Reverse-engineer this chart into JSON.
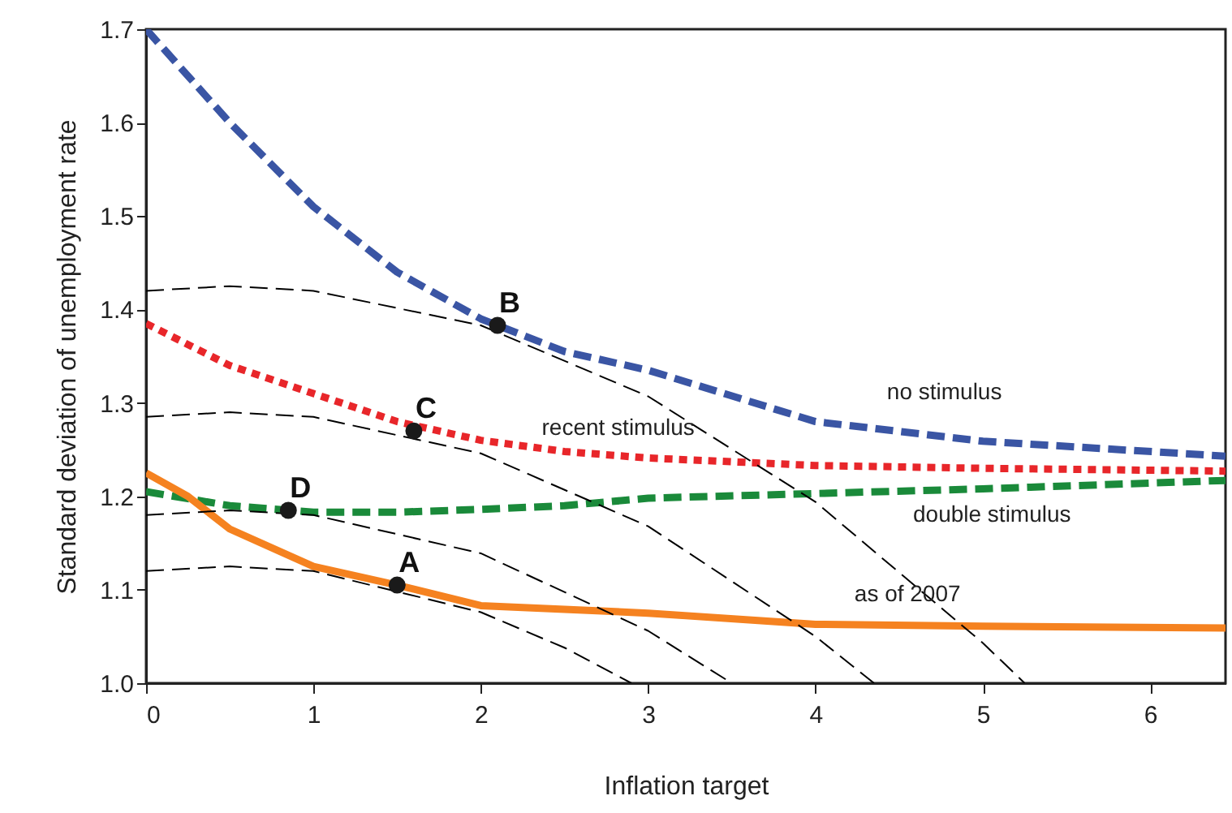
{
  "chart_data": {
    "type": "line",
    "xlabel": "Inflation target",
    "ylabel": "Standard deviation of unemployment rate",
    "xlim": [
      0,
      6.45
    ],
    "xticks": [
      0,
      1,
      2,
      3,
      4,
      5,
      6
    ],
    "ylim": [
      1.0,
      1.7
    ],
    "yticks": [
      {
        "value": 1.0,
        "label": "1.0"
      },
      1.1,
      1.2,
      1.3,
      1.4,
      1.5,
      1.6,
      {
        "value": 1.7,
        "label": "1.7"
      }
    ],
    "grid": false,
    "legend": false,
    "marker": "none",
    "series": [
      {
        "name": "no stimulus",
        "color": "#3a55a4",
        "line_style": "dashed",
        "x": [
          0,
          0.5,
          1,
          1.5,
          2,
          2.5,
          3,
          4,
          5,
          6.45
        ],
        "values": [
          1.7,
          1.6,
          1.51,
          1.44,
          1.39,
          1.355,
          1.335,
          1.28,
          1.259,
          1.243
        ]
      },
      {
        "name": "recent stimulus",
        "color": "#e8262a",
        "line_style": "dotted",
        "x": [
          0,
          0.5,
          1,
          1.5,
          2,
          2.5,
          3,
          4,
          5,
          6.45
        ],
        "values": [
          1.385,
          1.34,
          1.31,
          1.28,
          1.26,
          1.248,
          1.241,
          1.233,
          1.23,
          1.227
        ]
      },
      {
        "name": "double stimulus",
        "color": "#1a8a3a",
        "line_style": "dashed",
        "x": [
          0,
          0.5,
          1,
          1.5,
          2,
          2.5,
          3,
          4,
          5,
          6.45
        ],
        "values": [
          1.205,
          1.19,
          1.183,
          1.183,
          1.186,
          1.19,
          1.198,
          1.203,
          1.208,
          1.217
        ]
      },
      {
        "name": "as of 2007",
        "color": "#f58220",
        "line_style": "solid",
        "x": [
          0,
          0.25,
          0.5,
          1,
          1.5,
          2,
          2.5,
          3,
          4,
          5,
          6.45
        ],
        "values": [
          1.225,
          1.2,
          1.165,
          1.125,
          1.105,
          1.083,
          1.079,
          1.075,
          1.063,
          1.061,
          1.059
        ]
      },
      {
        "color": "#000000",
        "line_style": "dashed",
        "x": [
          0,
          0.5,
          1,
          2,
          3,
          4,
          5,
          5.25
        ],
        "values": [
          1.42,
          1.425,
          1.42,
          1.383,
          1.307,
          1.194,
          1.043,
          1.0
        ]
      },
      {
        "color": "#000000",
        "line_style": "dashed",
        "x": [
          0,
          0.5,
          1,
          2,
          3,
          4,
          4.35
        ],
        "values": [
          1.285,
          1.29,
          1.285,
          1.246,
          1.168,
          1.05,
          1.0
        ]
      },
      {
        "color": "#000000",
        "line_style": "dashed",
        "x": [
          0,
          0.5,
          1,
          2,
          3,
          3.5
        ],
        "values": [
          1.18,
          1.185,
          1.18,
          1.139,
          1.056,
          1.0
        ]
      },
      {
        "color": "#000000",
        "line_style": "dashed",
        "x": [
          0,
          0.5,
          1,
          2,
          2.5,
          2.9
        ],
        "values": [
          1.12,
          1.125,
          1.12,
          1.076,
          1.038,
          1.0
        ]
      },
      {
        "type": "scatter",
        "marker": "circle",
        "color": "#1a1a1a",
        "x": [
          1.5,
          2.1,
          1.6,
          0.85
        ],
        "values": [
          1.105,
          1.383,
          1.27,
          1.185
        ]
      }
    ],
    "annotations": [
      {
        "text": "A",
        "x": 1.5,
        "y": 1.105
      },
      {
        "text": "B",
        "x": 2.1,
        "y": 1.383
      },
      {
        "text": "C",
        "x": 1.6,
        "y": 1.27
      },
      {
        "text": "D",
        "x": 0.85,
        "y": 1.185
      }
    ]
  }
}
